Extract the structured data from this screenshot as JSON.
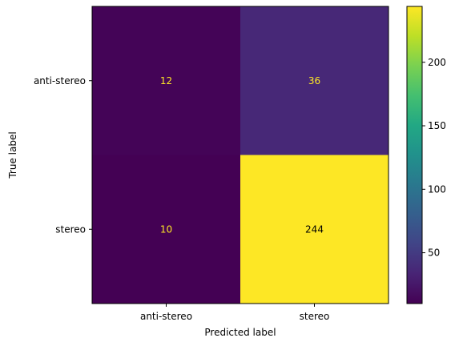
{
  "chart_data": {
    "type": "heatmap",
    "title": "",
    "xlabel": "Predicted label",
    "ylabel": "True label",
    "x_categories": [
      "anti-stereo",
      "stereo"
    ],
    "y_categories": [
      "anti-stereo",
      "stereo"
    ],
    "values": [
      [
        12,
        36
      ],
      [
        10,
        244
      ]
    ],
    "colormap": "viridis",
    "colorbar": {
      "min": 10,
      "max": 244,
      "ticks": [
        50,
        100,
        150,
        200
      ]
    },
    "cell_text_colors": {
      "on_dark": "#fde725",
      "on_light": "#000000"
    }
  }
}
